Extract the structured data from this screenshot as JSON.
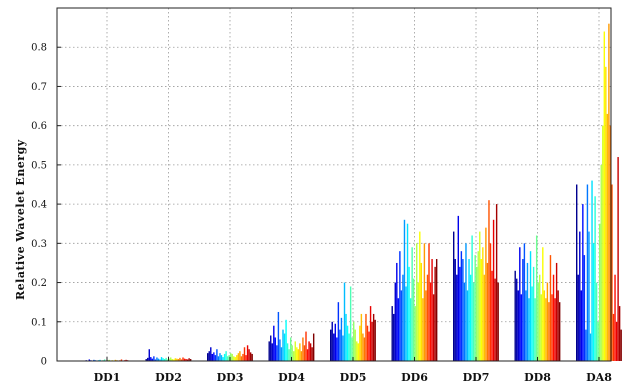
{
  "chart_data": {
    "type": "bar",
    "ylabel": "Relative Wavelet Energy",
    "ylim": [
      0,
      0.9
    ],
    "yticks": [
      "0",
      "0.1",
      "0.2",
      "0.3",
      "0.4",
      "0.5",
      "0.6",
      "0.7",
      "0.8"
    ],
    "grid": true,
    "colormap": [
      "#00008f",
      "#0000ff",
      "#0080ff",
      "#00ffff",
      "#80ff80",
      "#ffff00",
      "#ff8000",
      "#ff0000",
      "#800000"
    ],
    "categories": [
      "DD1",
      "DD2",
      "DD3",
      "DD4",
      "DD5",
      "DD6",
      "DD7",
      "DD8",
      "DA8"
    ],
    "groups": [
      {
        "label": "DD1",
        "values": [
          0.001,
          0.002,
          0.001,
          0.004,
          0.002,
          0.001,
          0.003,
          0.002,
          0.001,
          0.002,
          0.003,
          0.001,
          0.002,
          0.004,
          0.001,
          0.002,
          0.003,
          0.001,
          0.002,
          0.001,
          0.003,
          0.002,
          0.001,
          0.002,
          0.004,
          0.001,
          0.002,
          0.003,
          0.002,
          0.001
        ]
      },
      {
        "label": "DD2",
        "values": [
          0.005,
          0.008,
          0.03,
          0.01,
          0.006,
          0.012,
          0.004,
          0.009,
          0.006,
          0.004,
          0.01,
          0.007,
          0.005,
          0.008,
          0.004,
          0.006,
          0.009,
          0.005,
          0.004,
          0.007,
          0.006,
          0.005,
          0.008,
          0.004,
          0.009,
          0.006,
          0.005,
          0.004,
          0.007,
          0.005
        ]
      },
      {
        "label": "DD3",
        "values": [
          0.02,
          0.025,
          0.035,
          0.018,
          0.022,
          0.015,
          0.03,
          0.012,
          0.02,
          0.015,
          0.01,
          0.018,
          0.025,
          0.012,
          0.015,
          0.02,
          0.018,
          0.012,
          0.01,
          0.015,
          0.02,
          0.025,
          0.012,
          0.018,
          0.035,
          0.015,
          0.04,
          0.03,
          0.022,
          0.018
        ]
      },
      {
        "label": "DD4",
        "values": [
          0.05,
          0.065,
          0.045,
          0.09,
          0.06,
          0.04,
          0.125,
          0.055,
          0.035,
          0.08,
          0.07,
          0.105,
          0.045,
          0.03,
          0.06,
          0.04,
          0.025,
          0.05,
          0.035,
          0.03,
          0.045,
          0.025,
          0.06,
          0.04,
          0.075,
          0.03,
          0.05,
          0.045,
          0.035,
          0.07
        ]
      },
      {
        "label": "DD5",
        "values": [
          0.08,
          0.1,
          0.07,
          0.095,
          0.06,
          0.15,
          0.08,
          0.11,
          0.065,
          0.2,
          0.12,
          0.09,
          0.07,
          0.19,
          0.06,
          0.1,
          0.08,
          0.05,
          0.045,
          0.09,
          0.12,
          0.07,
          0.06,
          0.12,
          0.09,
          0.075,
          0.14,
          0.1,
          0.12,
          0.105
        ]
      },
      {
        "label": "DD6",
        "values": [
          0.14,
          0.12,
          0.2,
          0.25,
          0.16,
          0.28,
          0.18,
          0.22,
          0.36,
          0.19,
          0.35,
          0.24,
          0.16,
          0.29,
          0.21,
          0.14,
          0.3,
          0.2,
          0.33,
          0.25,
          0.16,
          0.3,
          0.18,
          0.22,
          0.3,
          0.2,
          0.26,
          0.17,
          0.24,
          0.26
        ]
      },
      {
        "label": "DD7",
        "values": [
          0.33,
          0.26,
          0.22,
          0.37,
          0.24,
          0.28,
          0.26,
          0.2,
          0.3,
          0.18,
          0.26,
          0.22,
          0.32,
          0.2,
          0.27,
          0.24,
          0.28,
          0.33,
          0.26,
          0.29,
          0.22,
          0.34,
          0.25,
          0.41,
          0.3,
          0.23,
          0.36,
          0.21,
          0.4,
          0.2
        ]
      },
      {
        "label": "DD8",
        "values": [
          0.23,
          0.21,
          0.18,
          0.29,
          0.17,
          0.26,
          0.3,
          0.18,
          0.25,
          0.16,
          0.28,
          0.19,
          0.24,
          0.16,
          0.32,
          0.2,
          0.22,
          0.17,
          0.29,
          0.18,
          0.16,
          0.2,
          0.15,
          0.27,
          0.17,
          0.22,
          0.16,
          0.25,
          0.18,
          0.15
        ]
      },
      {
        "label": "DA8",
        "values": [
          0.45,
          0.22,
          0.33,
          0.18,
          0.4,
          0.27,
          0.08,
          0.45,
          0.33,
          0.07,
          0.46,
          0.3,
          0.42,
          0.2,
          0.1,
          0.35,
          0.5,
          0.6,
          0.84,
          0.75,
          0.63,
          0.86,
          0.6,
          0.45,
          0.12,
          0.22,
          0.1,
          0.52,
          0.14,
          0.08
        ]
      }
    ]
  }
}
